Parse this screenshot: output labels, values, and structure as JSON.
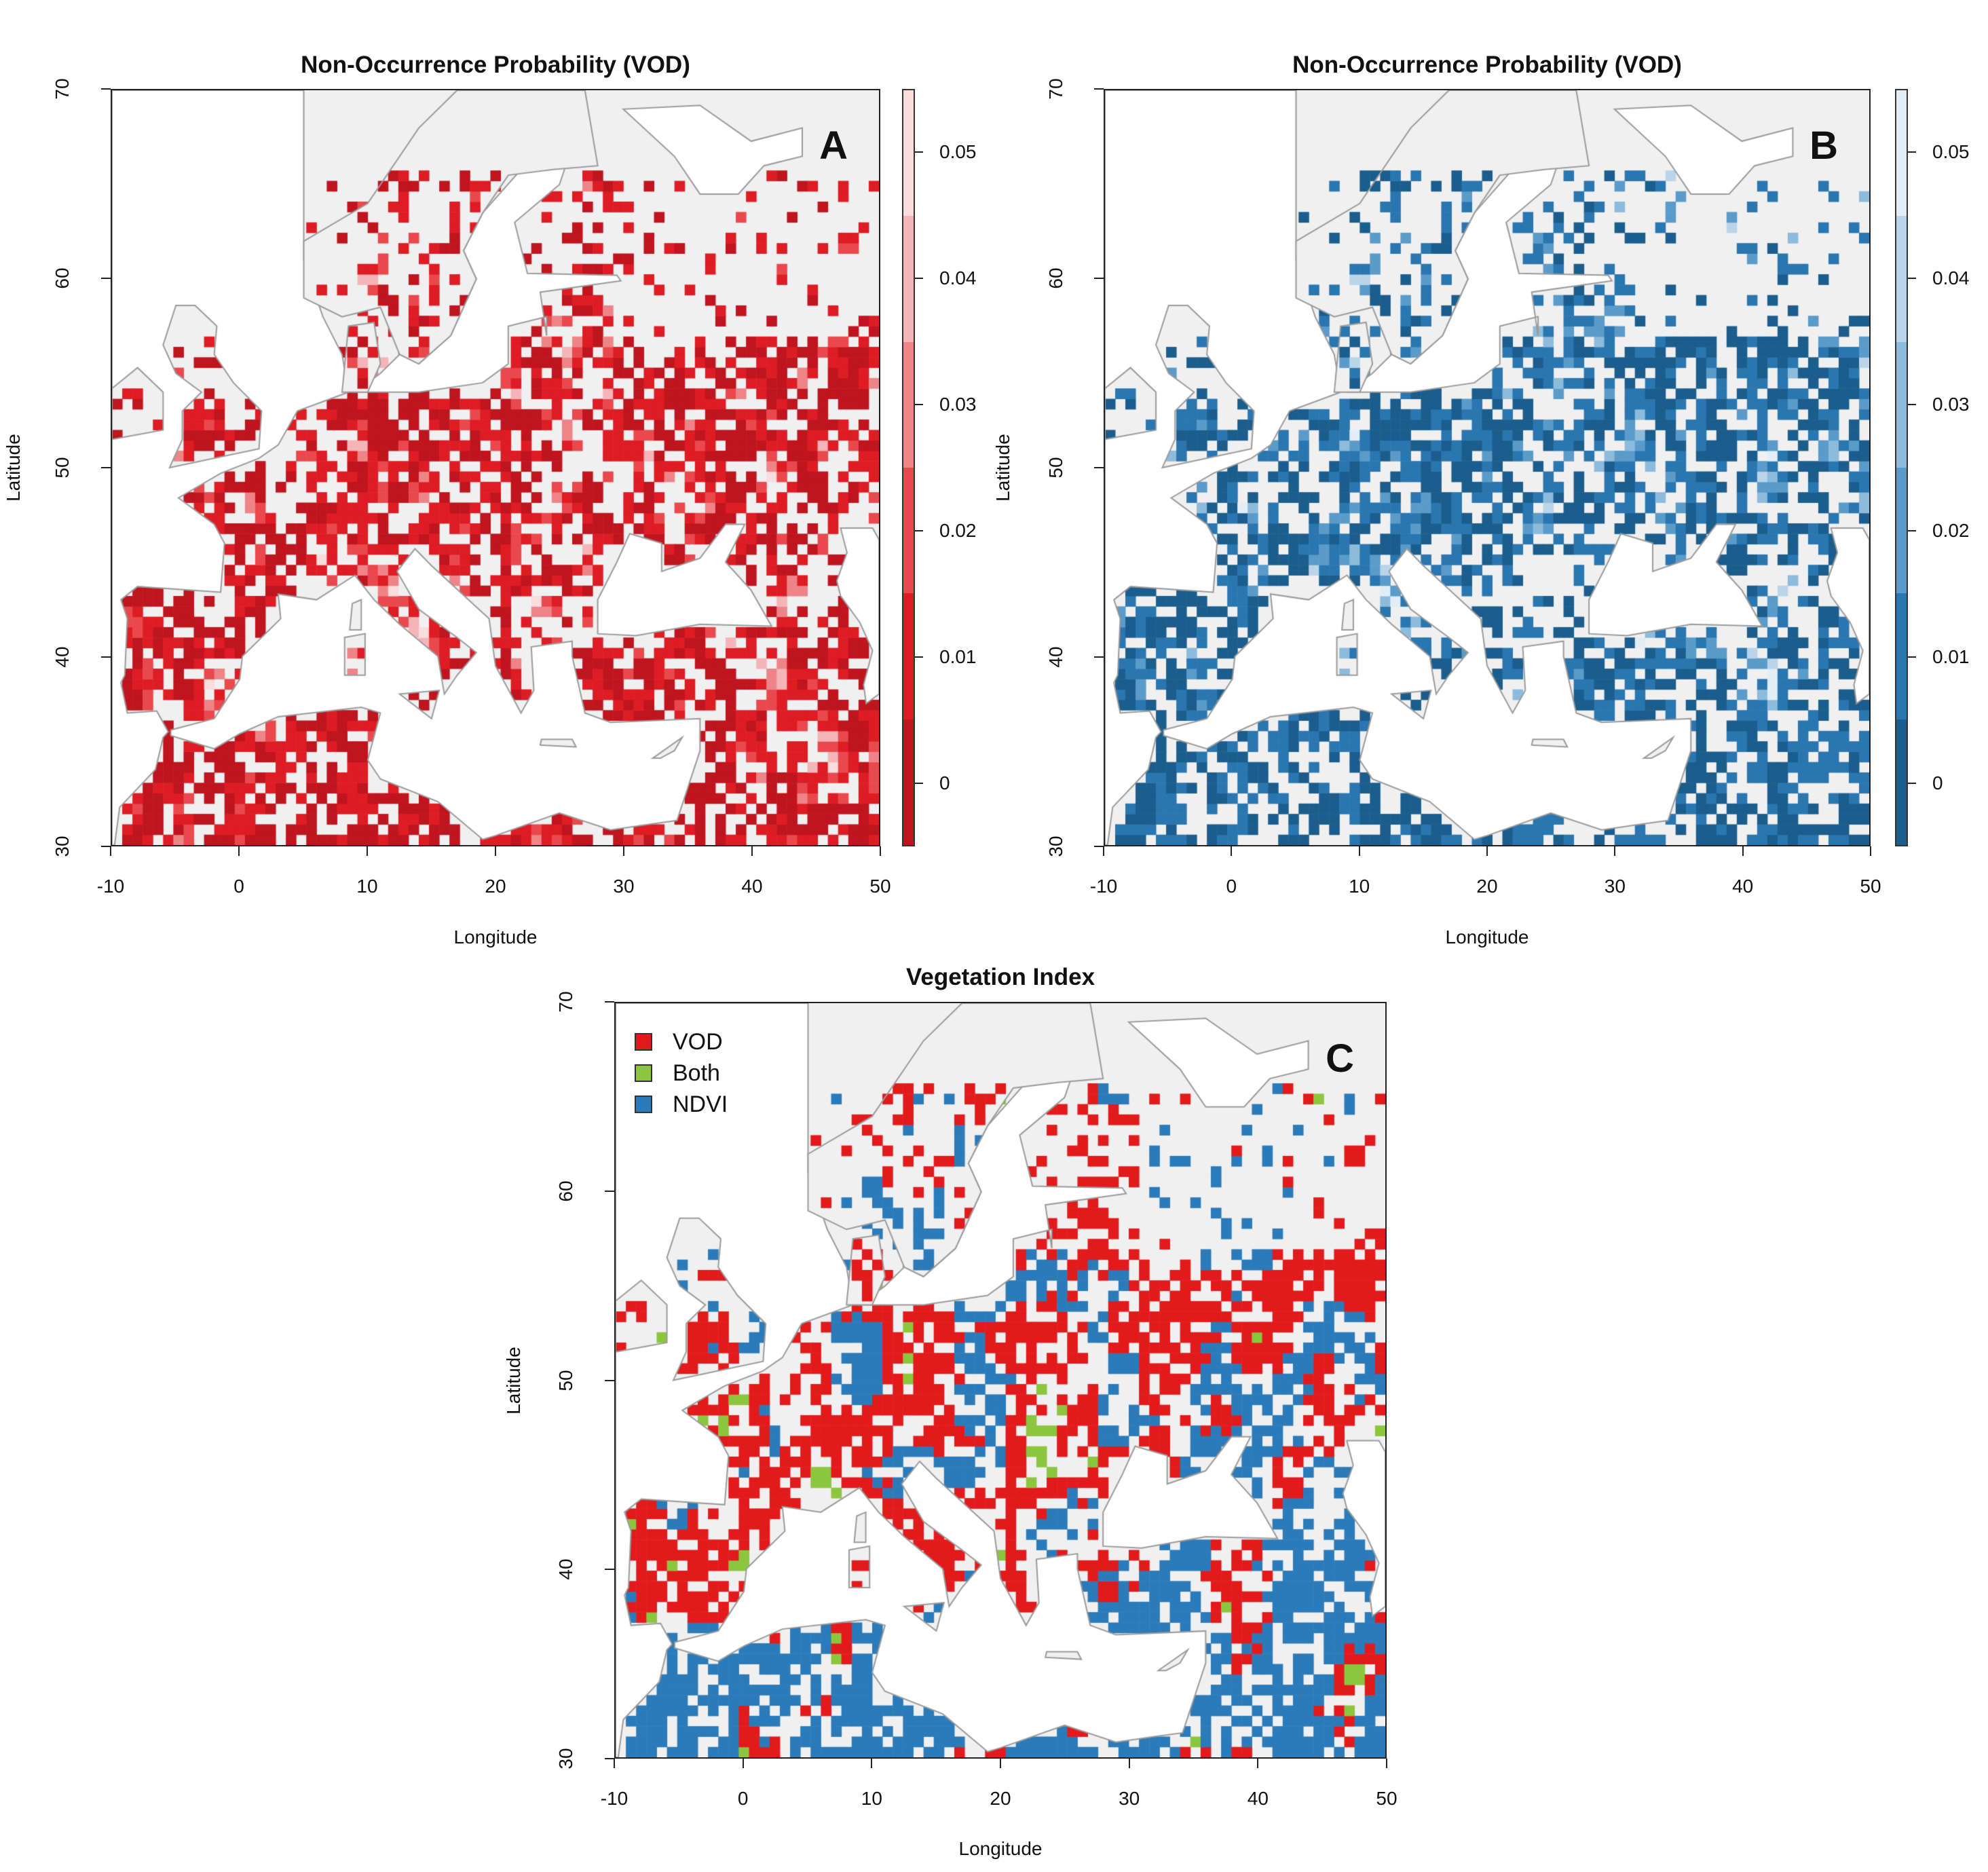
{
  "chart_data": [
    {
      "type": "heatmap",
      "panel": "A",
      "title": "Non-Occurrence Probability (VOD)",
      "xlabel": "Longitude",
      "ylabel": "Latitude",
      "xlim": [
        -10,
        50
      ],
      "ylim": [
        30,
        70
      ],
      "xticks": [
        -10,
        0,
        10,
        20,
        30,
        40,
        50
      ],
      "yticks": [
        30,
        40,
        50,
        60,
        70
      ],
      "colorbar": {
        "range": [
          -0.005,
          0.055
        ],
        "ticks": [
          0,
          0.01,
          0.02,
          0.03,
          0.04,
          0.05
        ],
        "tick_labels": [
          "0",
          "0.01",
          "0.02",
          "0.03",
          "0.04",
          "0.05"
        ],
        "colors": [
          "#c0141f",
          "#de1c24",
          "#e9494d",
          "#ef8488",
          "#f5b5b8",
          "#fadcdd"
        ]
      },
      "panel_letter": "A"
    },
    {
      "type": "heatmap",
      "panel": "B",
      "title": "Non-Occurrence Probability (VOD)",
      "xlabel": "Longitude",
      "ylabel": "Latitude",
      "xlim": [
        -10,
        50
      ],
      "ylim": [
        30,
        70
      ],
      "xticks": [
        -10,
        0,
        10,
        20,
        30,
        40,
        50
      ],
      "yticks": [
        30,
        40,
        50,
        60,
        70
      ],
      "colorbar": {
        "range": [
          -0.005,
          0.055
        ],
        "ticks": [
          0,
          0.01,
          0.02,
          0.03,
          0.04,
          0.05
        ],
        "tick_labels": [
          "0",
          "0.01",
          "0.02",
          "0.03",
          "0.04",
          "0.05"
        ],
        "colors": [
          "#1b5d8c",
          "#2a76b0",
          "#5b9bc9",
          "#8dbbdb",
          "#bad5ea",
          "#e2edf6"
        ]
      },
      "panel_letter": "B"
    },
    {
      "type": "heatmap",
      "panel": "C",
      "title": "Vegetation Index",
      "xlabel": "Longitude",
      "ylabel": "Latitude",
      "xlim": [
        -10,
        50
      ],
      "ylim": [
        30,
        70
      ],
      "xticks": [
        -10,
        0,
        10,
        20,
        30,
        40,
        50
      ],
      "yticks": [
        30,
        40,
        50,
        60,
        70
      ],
      "legend": {
        "placement": "top-left",
        "entries": [
          {
            "label": "VOD",
            "color": "#e31a1c"
          },
          {
            "label": "Both",
            "color": "#8cc63f"
          },
          {
            "label": "NDVI",
            "color": "#2b7bba"
          }
        ]
      },
      "panel_letter": "C"
    }
  ],
  "colors": {
    "land": "#f0f0f0",
    "coast": "#9a9a9a",
    "sea": "#ffffff"
  }
}
